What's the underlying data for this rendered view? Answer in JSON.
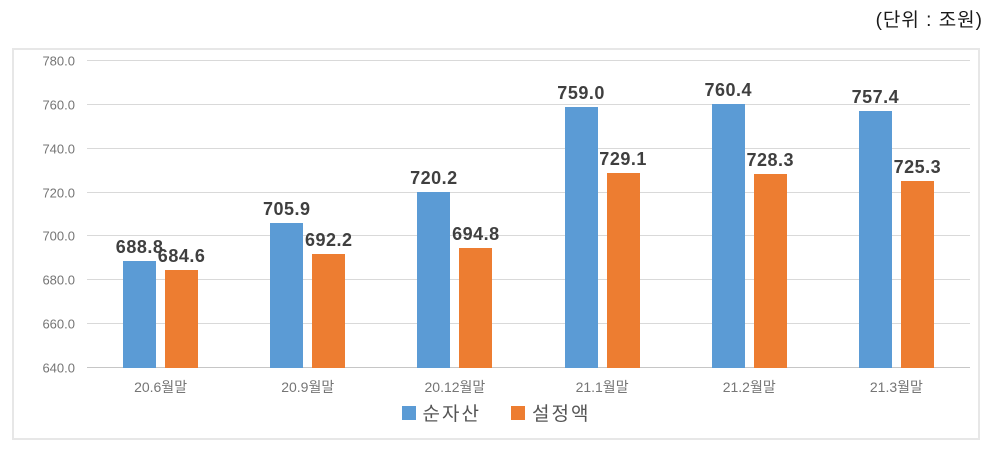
{
  "unit_label": "(단위 : 조원)",
  "chart_data": {
    "type": "bar",
    "title": "",
    "xlabel": "",
    "ylabel": "",
    "categories": [
      "20.6월말",
      "20.9월말",
      "20.12월말",
      "21.1월말",
      "21.2월말",
      "21.3월말"
    ],
    "series": [
      {
        "name": "순자산",
        "color": "#5B9BD5",
        "values": [
          688.8,
          705.9,
          720.2,
          759.0,
          760.4,
          757.4
        ]
      },
      {
        "name": "설정액",
        "color": "#ED7D31",
        "values": [
          684.6,
          692.2,
          694.8,
          729.1,
          728.3,
          725.3
        ]
      }
    ],
    "data_labels": [
      [
        "688.8",
        "705.9",
        "720.2",
        "759.0",
        "760.4",
        "757.4"
      ],
      [
        "684.6",
        "692.2",
        "694.8",
        "729.1",
        "728.3",
        "725.3"
      ]
    ],
    "ylim": [
      640,
      780
    ],
    "ytick_step": 20,
    "ytick_labels": [
      "640.0",
      "660.0",
      "680.0",
      "700.0",
      "720.0",
      "740.0",
      "760.0",
      "780.0"
    ],
    "grid": true,
    "legend_position": "bottom"
  },
  "colors": {
    "gridline": "#d9d9d9",
    "axis_line": "#c6c6c6",
    "tick_text": "#757575",
    "data_label_text": "#3f3f3f",
    "legend_text": "#555555",
    "chart_border": "#e7e7e7"
  }
}
